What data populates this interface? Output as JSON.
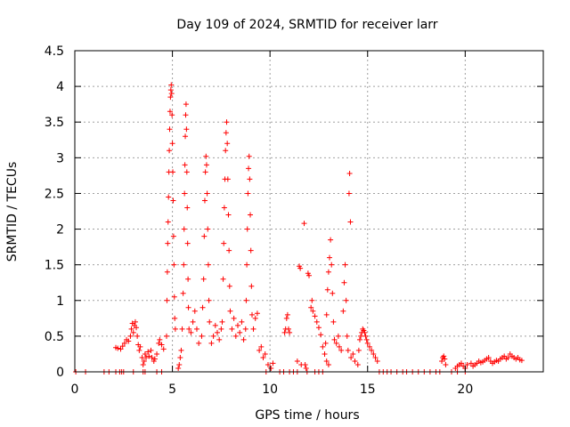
{
  "chart_data": {
    "type": "scatter",
    "title": "Day 109 of 2024, SRMTID for receiver larr",
    "xlabel": "GPS time / hours",
    "ylabel": "SRMTID / TECUs",
    "xlim": [
      0,
      24
    ],
    "ylim": [
      0,
      4.5
    ],
    "xticks": [
      0,
      5,
      10,
      15,
      20
    ],
    "xtick_labels": [
      "0",
      "5",
      "10",
      "15",
      "20"
    ],
    "yticks": [
      0,
      0.5,
      1,
      1.5,
      2,
      2.5,
      3,
      3.5,
      4,
      4.5
    ],
    "ytick_labels": [
      "0",
      "0.5",
      "1",
      "1.5",
      "2",
      "2.5",
      "3",
      "3.5",
      "4",
      "4.5"
    ],
    "grid": true,
    "marker": "+",
    "series": [
      {
        "name": "SRMTID",
        "color": "#ff0000",
        "points": [
          [
            0.05,
            0
          ],
          [
            0.55,
            0
          ],
          [
            1.5,
            0
          ],
          [
            1.75,
            0
          ],
          [
            2.1,
            0
          ],
          [
            2.3,
            0
          ],
          [
            2.4,
            0
          ],
          [
            2.5,
            0
          ],
          [
            3.0,
            0
          ],
          [
            3.5,
            0
          ],
          [
            3.6,
            0
          ],
          [
            4.2,
            0
          ],
          [
            4.45,
            0
          ],
          [
            2.1,
            0.34
          ],
          [
            2.2,
            0.33
          ],
          [
            2.35,
            0.32
          ],
          [
            2.45,
            0.36
          ],
          [
            2.55,
            0.4
          ],
          [
            2.65,
            0.45
          ],
          [
            2.75,
            0.43
          ],
          [
            2.85,
            0.5
          ],
          [
            2.9,
            0.6
          ],
          [
            2.95,
            0.68
          ],
          [
            3.0,
            0.55
          ],
          [
            3.05,
            0.65
          ],
          [
            3.1,
            0.7
          ],
          [
            3.15,
            0.62
          ],
          [
            3.2,
            0.5
          ],
          [
            3.25,
            0.38
          ],
          [
            3.3,
            0.3
          ],
          [
            3.35,
            0.35
          ],
          [
            3.45,
            0.2
          ],
          [
            3.5,
            0.1
          ],
          [
            3.55,
            0.15
          ],
          [
            3.6,
            0.25
          ],
          [
            3.65,
            0.2
          ],
          [
            3.75,
            0.28
          ],
          [
            3.8,
            0.22
          ],
          [
            3.9,
            0.3
          ],
          [
            3.95,
            0.2
          ],
          [
            4.05,
            0.15
          ],
          [
            4.1,
            0.18
          ],
          [
            4.2,
            0.25
          ],
          [
            4.3,
            0.4
          ],
          [
            4.35,
            0.45
          ],
          [
            4.45,
            0.38
          ],
          [
            4.55,
            0.32
          ],
          [
            4.7,
            0.5
          ],
          [
            4.72,
            1.0
          ],
          [
            4.74,
            1.4
          ],
          [
            4.76,
            1.8
          ],
          [
            4.78,
            2.1
          ],
          [
            4.8,
            2.45
          ],
          [
            4.82,
            2.8
          ],
          [
            4.84,
            3.1
          ],
          [
            4.86,
            3.4
          ],
          [
            4.88,
            3.65
          ],
          [
            4.9,
            3.85
          ],
          [
            4.92,
            3.95
          ],
          [
            4.94,
            4.02
          ],
          [
            4.96,
            3.9
          ],
          [
            4.98,
            3.6
          ],
          [
            5.0,
            3.2
          ],
          [
            5.02,
            2.8
          ],
          [
            5.04,
            2.4
          ],
          [
            5.06,
            1.9
          ],
          [
            5.08,
            1.5
          ],
          [
            5.1,
            1.05
          ],
          [
            5.12,
            0.75
          ],
          [
            5.15,
            0.6
          ],
          [
            5.3,
            0.05
          ],
          [
            5.35,
            0.1
          ],
          [
            5.4,
            0.2
          ],
          [
            5.45,
            0.3
          ],
          [
            5.5,
            0.6
          ],
          [
            5.55,
            1.1
          ],
          [
            5.58,
            1.5
          ],
          [
            5.6,
            2.0
          ],
          [
            5.62,
            2.5
          ],
          [
            5.64,
            2.9
          ],
          [
            5.66,
            3.3
          ],
          [
            5.68,
            3.6
          ],
          [
            5.7,
            3.75
          ],
          [
            5.72,
            3.4
          ],
          [
            5.74,
            2.8
          ],
          [
            5.76,
            2.3
          ],
          [
            5.78,
            1.8
          ],
          [
            5.8,
            1.3
          ],
          [
            5.82,
            0.9
          ],
          [
            5.85,
            0.6
          ],
          [
            5.95,
            0.55
          ],
          [
            6.05,
            0.7
          ],
          [
            6.15,
            0.85
          ],
          [
            6.25,
            0.6
          ],
          [
            6.35,
            0.4
          ],
          [
            6.5,
            0.5
          ],
          [
            6.55,
            0.9
          ],
          [
            6.6,
            1.3
          ],
          [
            6.63,
            1.9
          ],
          [
            6.66,
            2.4
          ],
          [
            6.69,
            2.8
          ],
          [
            6.72,
            3.02
          ],
          [
            6.75,
            2.9
          ],
          [
            6.78,
            2.5
          ],
          [
            6.81,
            2.0
          ],
          [
            6.84,
            1.5
          ],
          [
            6.87,
            1.0
          ],
          [
            6.9,
            0.7
          ],
          [
            7.0,
            0.4
          ],
          [
            7.1,
            0.5
          ],
          [
            7.2,
            0.65
          ],
          [
            7.3,
            0.55
          ],
          [
            7.4,
            0.45
          ],
          [
            7.5,
            0.6
          ],
          [
            7.55,
            0.7
          ],
          [
            7.6,
            1.3
          ],
          [
            7.63,
            1.8
          ],
          [
            7.66,
            2.3
          ],
          [
            7.69,
            2.7
          ],
          [
            7.72,
            3.1
          ],
          [
            7.75,
            3.35
          ],
          [
            7.78,
            3.5
          ],
          [
            7.81,
            3.2
          ],
          [
            7.84,
            2.7
          ],
          [
            7.87,
            2.2
          ],
          [
            7.9,
            1.7
          ],
          [
            7.93,
            1.2
          ],
          [
            7.96,
            0.85
          ],
          [
            8.05,
            0.6
          ],
          [
            8.15,
            0.75
          ],
          [
            8.25,
            0.5
          ],
          [
            8.35,
            0.65
          ],
          [
            8.45,
            0.55
          ],
          [
            8.55,
            0.7
          ],
          [
            8.65,
            0.45
          ],
          [
            8.75,
            0.6
          ],
          [
            8.78,
            1.0
          ],
          [
            8.81,
            1.5
          ],
          [
            8.84,
            2.0
          ],
          [
            8.87,
            2.5
          ],
          [
            8.9,
            2.85
          ],
          [
            8.93,
            3.02
          ],
          [
            8.96,
            2.7
          ],
          [
            8.99,
            2.2
          ],
          [
            9.02,
            1.7
          ],
          [
            9.05,
            1.2
          ],
          [
            9.08,
            0.8
          ],
          [
            9.15,
            0.6
          ],
          [
            9.25,
            0.75
          ],
          [
            9.35,
            0.82
          ],
          [
            9.45,
            0.3
          ],
          [
            9.55,
            0.35
          ],
          [
            9.65,
            0.2
          ],
          [
            9.75,
            0.25
          ],
          [
            9.9,
            0.1
          ],
          [
            10.05,
            0.05
          ],
          [
            10.15,
            0.12
          ],
          [
            9.8,
            0
          ],
          [
            10.5,
            0
          ],
          [
            10.7,
            0
          ],
          [
            11.0,
            0
          ],
          [
            11.2,
            0
          ],
          [
            11.4,
            0
          ],
          [
            11.9,
            0
          ],
          [
            12.3,
            0
          ],
          [
            12.5,
            0
          ],
          [
            12.7,
            0
          ],
          [
            10.75,
            0.55
          ],
          [
            10.8,
            0.6
          ],
          [
            10.85,
            0.75
          ],
          [
            10.9,
            0.8
          ],
          [
            10.95,
            0.6
          ],
          [
            11.0,
            0.55
          ],
          [
            11.4,
            0.15
          ],
          [
            11.5,
            1.48
          ],
          [
            11.55,
            1.45
          ],
          [
            11.6,
            0.1
          ],
          [
            11.75,
            2.08
          ],
          [
            11.8,
            0.1
          ],
          [
            11.85,
            0.05
          ],
          [
            11.95,
            1.38
          ],
          [
            12.0,
            1.35
          ],
          [
            12.1,
            0.9
          ],
          [
            12.15,
            1.0
          ],
          [
            12.2,
            0.85
          ],
          [
            12.3,
            0.78
          ],
          [
            12.4,
            0.7
          ],
          [
            12.5,
            0.62
          ],
          [
            12.6,
            0.52
          ],
          [
            12.7,
            0.35
          ],
          [
            12.8,
            0.25
          ],
          [
            12.9,
            0.15
          ],
          [
            13.0,
            0.1
          ],
          [
            12.85,
            0.4
          ],
          [
            12.9,
            0.8
          ],
          [
            12.95,
            1.15
          ],
          [
            13.0,
            1.4
          ],
          [
            13.05,
            1.6
          ],
          [
            13.1,
            1.85
          ],
          [
            13.15,
            1.5
          ],
          [
            13.2,
            1.1
          ],
          [
            13.25,
            0.7
          ],
          [
            13.3,
            0.45
          ],
          [
            13.4,
            0.4
          ],
          [
            13.5,
            0.5
          ],
          [
            13.55,
            0.35
          ],
          [
            13.65,
            0.3
          ],
          [
            13.75,
            0.85
          ],
          [
            13.8,
            1.25
          ],
          [
            13.85,
            1.5
          ],
          [
            13.9,
            1.0
          ],
          [
            13.95,
            0.5
          ],
          [
            14.0,
            0.3
          ],
          [
            14.05,
            2.5
          ],
          [
            14.08,
            2.78
          ],
          [
            14.12,
            2.1
          ],
          [
            14.15,
            0.2
          ],
          [
            14.25,
            0.25
          ],
          [
            14.35,
            0.15
          ],
          [
            14.5,
            0.1
          ],
          [
            14.55,
            0.3
          ],
          [
            14.6,
            0.45
          ],
          [
            14.65,
            0.5
          ],
          [
            14.7,
            0.55
          ],
          [
            14.75,
            0.6
          ],
          [
            14.8,
            0.58
          ],
          [
            14.85,
            0.55
          ],
          [
            14.9,
            0.5
          ],
          [
            14.95,
            0.45
          ],
          [
            15.0,
            0.4
          ],
          [
            15.1,
            0.35
          ],
          [
            15.2,
            0.3
          ],
          [
            15.3,
            0.25
          ],
          [
            15.4,
            0.2
          ],
          [
            15.5,
            0.15
          ],
          [
            15.6,
            0
          ],
          [
            15.8,
            0
          ],
          [
            16.0,
            0
          ],
          [
            16.2,
            0
          ],
          [
            16.5,
            0
          ],
          [
            16.8,
            0
          ],
          [
            17.0,
            0
          ],
          [
            17.3,
            0
          ],
          [
            17.6,
            0
          ],
          [
            17.9,
            0
          ],
          [
            18.2,
            0
          ],
          [
            18.5,
            0
          ],
          [
            18.7,
            0
          ],
          [
            19.3,
            0
          ],
          [
            19.6,
            0
          ],
          [
            20.0,
            0
          ],
          [
            18.8,
            0.15
          ],
          [
            18.85,
            0.2
          ],
          [
            18.9,
            0.22
          ],
          [
            18.95,
            0.18
          ],
          [
            19.0,
            0.1
          ],
          [
            19.5,
            0.05
          ],
          [
            19.6,
            0.08
          ],
          [
            19.7,
            0.1
          ],
          [
            19.8,
            0.12
          ],
          [
            19.9,
            0.08
          ],
          [
            20.0,
            0.05
          ],
          [
            20.1,
            0.1
          ],
          [
            20.3,
            0.12
          ],
          [
            20.4,
            0.08
          ],
          [
            20.5,
            0.1
          ],
          [
            20.6,
            0.12
          ],
          [
            20.7,
            0.15
          ],
          [
            20.8,
            0.13
          ],
          [
            20.9,
            0.14
          ],
          [
            21.0,
            0.16
          ],
          [
            21.1,
            0.18
          ],
          [
            21.2,
            0.2
          ],
          [
            21.3,
            0.15
          ],
          [
            21.4,
            0.12
          ],
          [
            21.5,
            0.14
          ],
          [
            21.6,
            0.16
          ],
          [
            21.7,
            0.15
          ],
          [
            21.8,
            0.18
          ],
          [
            21.9,
            0.2
          ],
          [
            22.0,
            0.22
          ],
          [
            22.1,
            0.18
          ],
          [
            22.2,
            0.2
          ],
          [
            22.3,
            0.25
          ],
          [
            22.4,
            0.22
          ],
          [
            22.5,
            0.2
          ],
          [
            22.6,
            0.18
          ],
          [
            22.7,
            0.2
          ],
          [
            22.8,
            0.17
          ],
          [
            22.9,
            0.16
          ]
        ]
      }
    ]
  }
}
